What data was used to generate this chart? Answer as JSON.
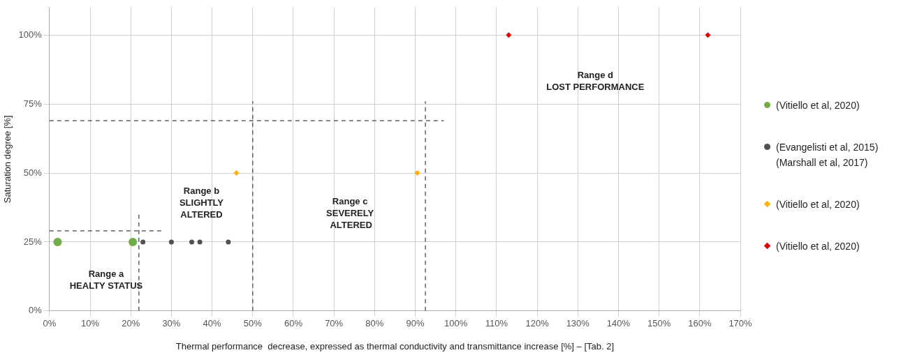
{
  "chart_data": {
    "type": "scatter",
    "xlabel": "Thermal performance  decrease, expressed as thermal conductivity and transmittance increase [%] – [Tab. 2]",
    "ylabel": "Saturation degree [%]",
    "xlim": [
      0,
      170
    ],
    "ylim": [
      0,
      110
    ],
    "xticks": [
      {
        "value": 0,
        "label": "0%"
      },
      {
        "value": 10,
        "label": "10%"
      },
      {
        "value": 20,
        "label": "20%"
      },
      {
        "value": 30,
        "label": "30%"
      },
      {
        "value": 40,
        "label": "40%"
      },
      {
        "value": 50,
        "label": "50%"
      },
      {
        "value": 60,
        "label": "60%"
      },
      {
        "value": 70,
        "label": "70%"
      },
      {
        "value": 80,
        "label": "80%"
      },
      {
        "value": 90,
        "label": "90%"
      },
      {
        "value": 100,
        "label": "100%"
      },
      {
        "value": 110,
        "label": "110%"
      },
      {
        "value": 120,
        "label": "120%"
      },
      {
        "value": 130,
        "label": "130%"
      },
      {
        "value": 140,
        "label": "140%"
      },
      {
        "value": 150,
        "label": "150%"
      },
      {
        "value": 160,
        "label": "160%"
      },
      {
        "value": 170,
        "label": "170%"
      }
    ],
    "yticks": [
      {
        "value": 0,
        "label": "0%"
      },
      {
        "value": 25,
        "label": "25%"
      },
      {
        "value": 50,
        "label": "50%"
      },
      {
        "value": 75,
        "label": "75%"
      },
      {
        "value": 100,
        "label": "100%"
      }
    ],
    "grid": true,
    "legend": "right",
    "series": [
      {
        "name": "(Vitiello et al, 2020)",
        "color": "#70ad47",
        "marker": "circle",
        "x": [
          2,
          20.5
        ],
        "values": [
          25,
          25
        ]
      },
      {
        "name": "(Evangelisti et al, 2015)\n(Marshall et al, 2017)",
        "color": "#505050",
        "marker": "circle",
        "x": [
          23,
          30,
          35,
          37,
          44
        ],
        "values": [
          25,
          25,
          25,
          25,
          25
        ]
      },
      {
        "name": "(Vitiello et al, 2020)",
        "color": "#ffb000",
        "marker": "diamond",
        "x": [
          46,
          90.5
        ],
        "values": [
          50,
          50
        ]
      },
      {
        "name": "(Vitiello et al, 2020)",
        "color": "#e00000",
        "marker": "diamond",
        "x": [
          113,
          162
        ],
        "values": [
          100,
          100
        ]
      },
      {
        "type": "line",
        "color": "#606060",
        "line_style": "dashed",
        "marker": "none",
        "x": [
          22,
          22
        ],
        "values": [
          0,
          35
        ]
      },
      {
        "type": "line",
        "color": "#606060",
        "line_style": "dashed",
        "marker": "none",
        "x": [
          0,
          28
        ],
        "values": [
          29,
          29
        ]
      },
      {
        "type": "line",
        "color": "#606060",
        "line_style": "dashed",
        "marker": "none",
        "x": [
          50,
          50
        ],
        "values": [
          0,
          76
        ]
      },
      {
        "type": "line",
        "color": "#606060",
        "line_style": "dashed",
        "marker": "none",
        "x": [
          92.5,
          92.5
        ],
        "values": [
          0,
          76
        ]
      },
      {
        "type": "line",
        "color": "#606060",
        "line_style": "dashed",
        "marker": "none",
        "x": [
          0,
          97
        ],
        "values": [
          69,
          69
        ]
      }
    ],
    "annotations": [
      "Range a\nHEALTY STATUS",
      "Range b\nSLIGHTLY\nALTERED",
      "Range c\nSEVERELY\n ALTERED",
      "Range d\nLOST PERFORMANCE"
    ]
  }
}
